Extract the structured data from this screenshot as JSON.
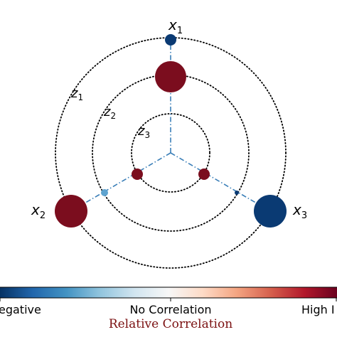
{
  "diagram": {
    "axes": [
      {
        "label": "x",
        "subscript": "1",
        "outer_color": "#0a3a73",
        "outer_scale": 0.3,
        "inner_color": "#7b0d1e",
        "inner_scale": 1.0
      },
      {
        "label": "x",
        "subscript": "2",
        "outer_color": "#7b0d1e",
        "outer_scale": 1.0,
        "inner_color": "#5ea3cf",
        "inner_scale": 0.22
      },
      {
        "label": "x",
        "subscript": "3",
        "outer_color": "#0a3a73",
        "outer_scale": 1.0,
        "inner_color": "#0a3a73",
        "inner_scale": 0.12
      }
    ],
    "center_nodes": [
      {
        "color": "#7b0d1e"
      },
      {
        "color": "#7b0d1e"
      }
    ],
    "rings": [
      {
        "label": "z",
        "subscript": "1"
      },
      {
        "label": "z",
        "subscript": "2"
      },
      {
        "label": "z",
        "subscript": "3"
      }
    ]
  },
  "colorbar": {
    "left_label": "egative",
    "center_label": "No Correlation",
    "right_label": "High I",
    "title": "Relative Correlation",
    "colors": [
      "#053061",
      "#2166ac",
      "#4393c3",
      "#92c5de",
      "#d1e5f0",
      "#f7f7f7",
      "#fddbc7",
      "#f4a582",
      "#d6604d",
      "#b2182b",
      "#67001f"
    ]
  }
}
